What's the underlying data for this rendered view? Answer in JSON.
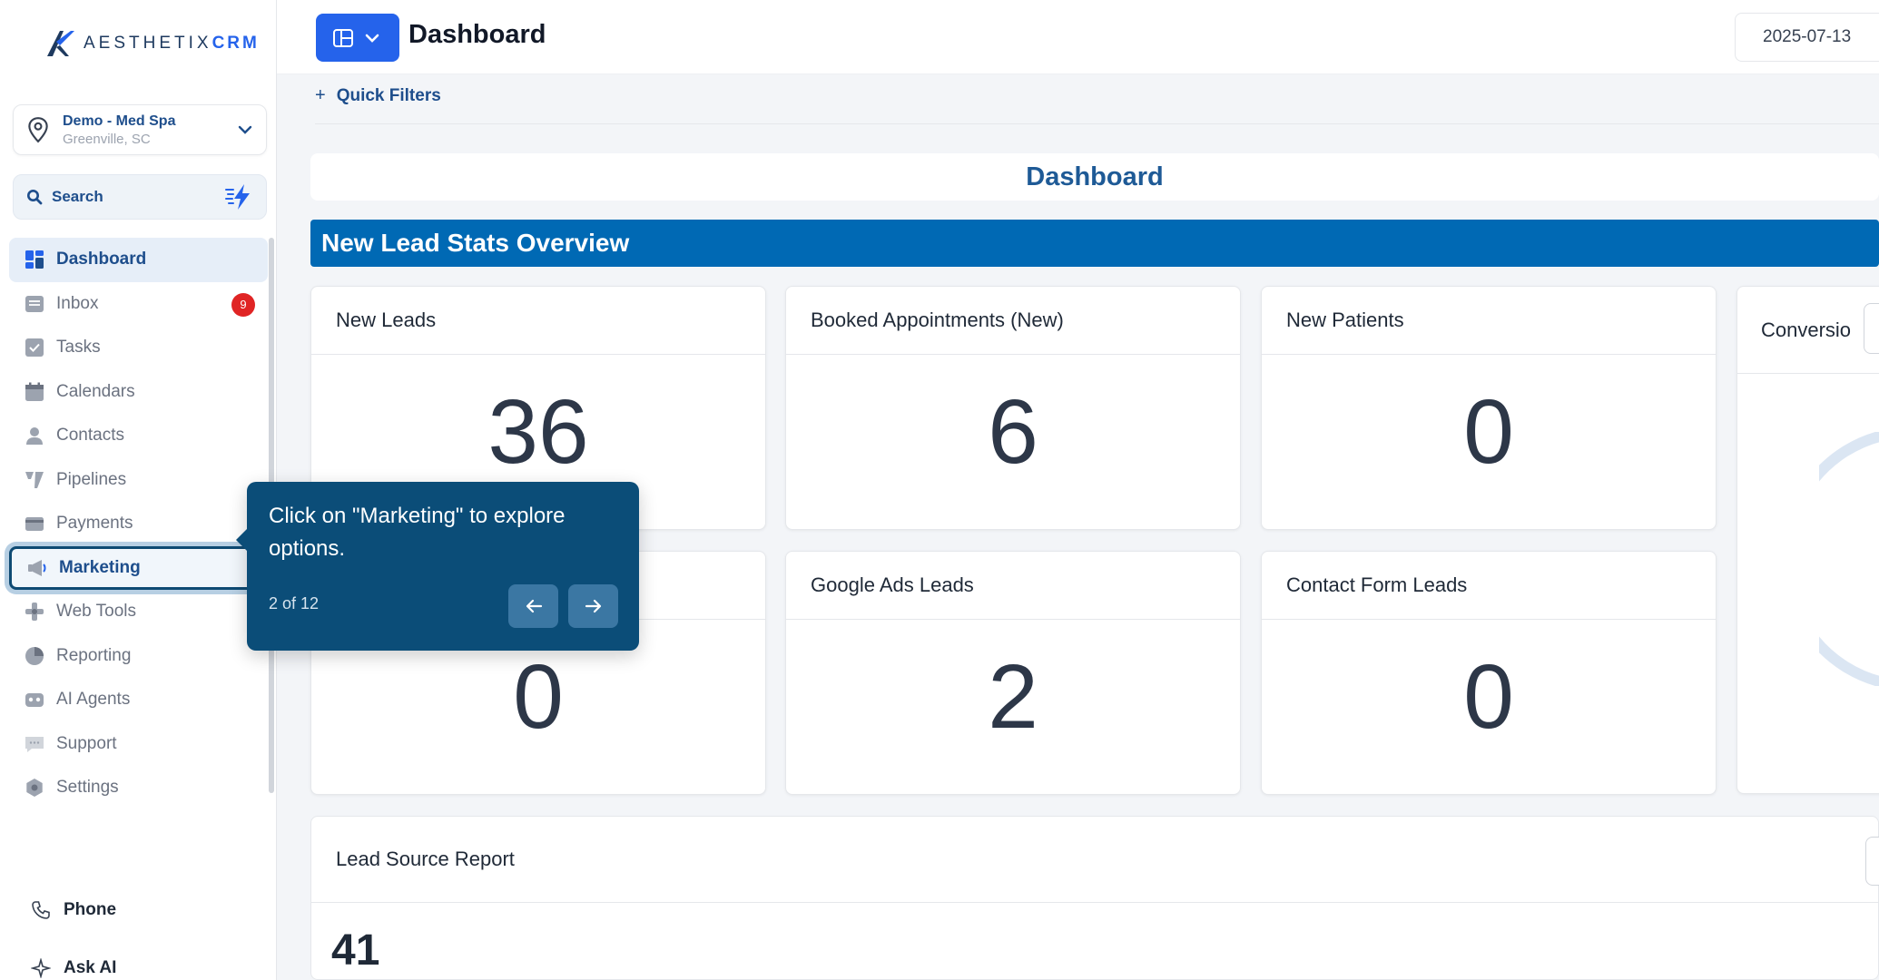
{
  "brand": {
    "name_part1": "AESTHETIX",
    "name_part2": "CRM"
  },
  "location": {
    "name": "Demo - Med Spa",
    "city": "Greenville, SC"
  },
  "search": {
    "label": "Search"
  },
  "nav": {
    "items": [
      {
        "label": "Dashboard",
        "icon": "dashboard-icon"
      },
      {
        "label": "Inbox",
        "icon": "inbox-icon",
        "badge": "9"
      },
      {
        "label": "Tasks",
        "icon": "tasks-icon"
      },
      {
        "label": "Calendars",
        "icon": "calendar-icon"
      },
      {
        "label": "Contacts",
        "icon": "contacts-icon"
      },
      {
        "label": "Pipelines",
        "icon": "pipelines-icon"
      },
      {
        "label": "Payments",
        "icon": "payments-icon"
      },
      {
        "label": "Marketing",
        "icon": "megaphone-icon"
      },
      {
        "label": "Web Tools",
        "icon": "web-tools-icon"
      },
      {
        "label": "Reporting",
        "icon": "pie-chart-icon"
      },
      {
        "label": "AI Agents",
        "icon": "robot-icon"
      },
      {
        "label": "Support",
        "icon": "chat-icon"
      },
      {
        "label": "Settings",
        "icon": "gear-icon"
      }
    ],
    "phone": "Phone",
    "ask_ai": "Ask AI"
  },
  "topbar": {
    "title": "Dashboard",
    "date": "2025-07-13"
  },
  "filters": {
    "quick_filters": "Quick Filters"
  },
  "dashboard": {
    "header": "Dashboard",
    "section_title": "New Lead Stats Overview",
    "cards": [
      {
        "title": "New Leads",
        "value": "36"
      },
      {
        "title": "Booked Appointments (New)",
        "value": "6"
      },
      {
        "title": "New Patients",
        "value": "0"
      },
      {
        "title": "Conversio",
        "value": ""
      },
      {
        "title": "",
        "value": "0"
      },
      {
        "title": "Google Ads Leads",
        "value": "2"
      },
      {
        "title": "Contact Form Leads",
        "value": "0"
      }
    ],
    "report": {
      "title": "Lead Source Report",
      "value": "41"
    }
  },
  "tooltip": {
    "text": "Click on \"Marketing\" to explore options.",
    "step": "2 of 12"
  },
  "colors": {
    "accent": "#2563eb",
    "section": "#0069b4",
    "tooltip": "#0b4d78",
    "badge": "#e02424"
  }
}
